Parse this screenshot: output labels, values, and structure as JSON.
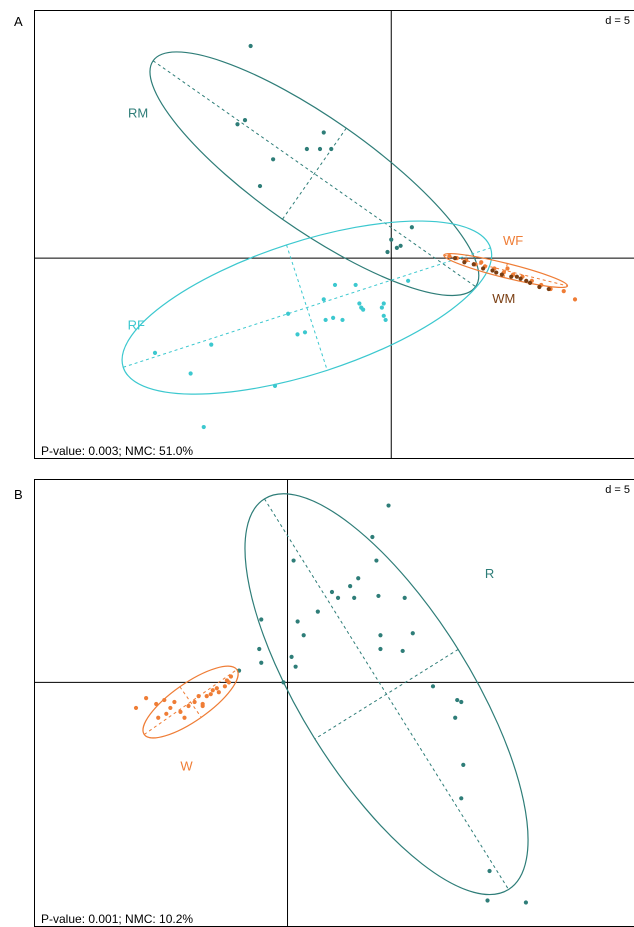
{
  "panels": [
    {
      "letter": "A",
      "scale_label": "d = 5",
      "stats": "P-value: 0.003; NMC: 51.0%"
    },
    {
      "letter": "B",
      "scale_label": "d = 5",
      "stats": "P-value: 0.001; NMC: 10.2%"
    }
  ],
  "colors": {
    "RM": "#2e7d78",
    "RF": "#3cc8cf",
    "WF": "#ef7d36",
    "WM": "#7a3e12",
    "R": "#2e7d78",
    "W": "#ef7d36"
  },
  "chart_data": [
    {
      "type": "scatter",
      "title": "",
      "xlim": [
        -19,
        13
      ],
      "ylim": [
        -9.8,
        12
      ],
      "grid": false,
      "series": [
        {
          "name": "RM",
          "color": "#2e7d78",
          "points": [
            [
              -7.5,
              10.3
            ],
            [
              -7.8,
              6.7
            ],
            [
              -8.2,
              6.5
            ],
            [
              -6.3,
              4.8
            ],
            [
              -7.0,
              3.5
            ],
            [
              -3.6,
              6.1
            ],
            [
              -4.5,
              5.3
            ],
            [
              -3.8,
              5.3
            ],
            [
              -3.2,
              5.3
            ],
            [
              1.1,
              1.5
            ],
            [
              0.0,
              0.9
            ],
            [
              0.5,
              0.6
            ],
            [
              0.3,
              0.5
            ],
            [
              -0.2,
              0.3
            ]
          ],
          "ellipse": {
            "cx": -4.1,
            "cy": 4.1,
            "rx": 10.5,
            "ry": 2.7,
            "angle_deg": -35
          }
        },
        {
          "name": "RF",
          "color": "#3cc8cf",
          "points": [
            [
              -12.6,
              -4.6
            ],
            [
              -10.7,
              -5.6
            ],
            [
              -9.6,
              -4.2
            ],
            [
              -6.2,
              -6.2
            ],
            [
              -10.0,
              -8.2
            ],
            [
              -5.5,
              -2.7
            ],
            [
              -5.0,
              -3.7
            ],
            [
              -3.0,
              -1.3
            ],
            [
              -3.6,
              -2.0
            ],
            [
              -1.9,
              -1.3
            ],
            [
              -1.7,
              -2.2
            ],
            [
              -1.6,
              -2.4
            ],
            [
              -0.4,
              -2.8
            ],
            [
              -0.3,
              -3.0
            ],
            [
              -0.5,
              -2.4
            ],
            [
              -0.4,
              -2.2
            ],
            [
              0.9,
              -1.1
            ],
            [
              -3.5,
              -3.0
            ],
            [
              -2.6,
              -3.0
            ],
            [
              -1.5,
              -2.5
            ],
            [
              -4.6,
              -3.6
            ],
            [
              -3.1,
              -2.9
            ]
          ],
          "ellipse": {
            "cx": -4.5,
            "cy": -2.4,
            "rx": 10.3,
            "ry": 3.2,
            "angle_deg": 18
          }
        },
        {
          "name": "WF",
          "color": "#ef7d36",
          "points": [
            [
              3.1,
              0.1
            ],
            [
              3.5,
              0.0
            ],
            [
              4.0,
              -0.1
            ],
            [
              4.5,
              -0.3
            ],
            [
              5.0,
              -0.4
            ],
            [
              5.5,
              -0.5
            ],
            [
              6.0,
              -0.7
            ],
            [
              6.5,
              -0.8
            ],
            [
              7.0,
              -0.9
            ],
            [
              7.5,
              -1.1
            ],
            [
              8.0,
              -1.3
            ],
            [
              8.5,
              -1.5
            ],
            [
              9.2,
              -1.6
            ],
            [
              9.8,
              -2.0
            ],
            [
              4.8,
              -0.2
            ],
            [
              6.2,
              -0.5
            ]
          ],
          "ellipse": {
            "cx": 6.1,
            "cy": -0.6,
            "rx": 3.4,
            "ry": 0.35,
            "angle_deg": -14
          }
        },
        {
          "name": "WM",
          "color": "#7a3e12",
          "points": [
            [
              3.4,
              0.0
            ],
            [
              3.9,
              -0.2
            ],
            [
              4.4,
              -0.3
            ],
            [
              4.9,
              -0.5
            ],
            [
              5.4,
              -0.6
            ],
            [
              5.9,
              -0.8
            ],
            [
              6.4,
              -0.9
            ],
            [
              6.9,
              -1.0
            ],
            [
              7.4,
              -1.2
            ],
            [
              7.9,
              -1.4
            ],
            [
              8.4,
              -1.5
            ],
            [
              5.6,
              -0.7
            ],
            [
              6.7,
              -0.9
            ],
            [
              7.2,
              -1.1
            ]
          ],
          "ellipse": null
        }
      ],
      "group_labels": [
        {
          "text": "RM",
          "x": -13.5,
          "y": 7.0,
          "series": "RM"
        },
        {
          "text": "RF",
          "x": -13.6,
          "y": -3.3,
          "series": "RF"
        },
        {
          "text": "WF",
          "x": 6.5,
          "y": 0.8,
          "series": "WF"
        },
        {
          "text": "WM",
          "x": 6.0,
          "y": -2.0,
          "series": "WM"
        }
      ]
    },
    {
      "type": "scatter",
      "title": "",
      "xlim": [
        -12.5,
        17.2
      ],
      "ylim": [
        -12.5,
        10.3
      ],
      "grid": false,
      "series": [
        {
          "name": "R",
          "color": "#2e7d78",
          "points": [
            [
              5.0,
              9.0
            ],
            [
              4.2,
              7.4
            ],
            [
              4.4,
              6.2
            ],
            [
              0.3,
              6.2
            ],
            [
              2.2,
              4.6
            ],
            [
              3.1,
              4.9
            ],
            [
              3.5,
              5.3
            ],
            [
              2.5,
              4.3
            ],
            [
              3.3,
              4.3
            ],
            [
              4.5,
              4.4
            ],
            [
              5.8,
              4.3
            ],
            [
              1.5,
              3.6
            ],
            [
              0.5,
              3.1
            ],
            [
              -1.3,
              3.2
            ],
            [
              4.6,
              2.4
            ],
            [
              6.2,
              2.5
            ],
            [
              -1.4,
              1.7
            ],
            [
              0.8,
              2.4
            ],
            [
              4.6,
              1.7
            ],
            [
              5.7,
              1.6
            ],
            [
              -2.4,
              0.6
            ],
            [
              0.2,
              1.3
            ],
            [
              -1.3,
              1.0
            ],
            [
              0.4,
              0.8
            ],
            [
              -0.2,
              0.0
            ],
            [
              7.2,
              -0.2
            ],
            [
              8.4,
              -0.9
            ],
            [
              8.3,
              -1.8
            ],
            [
              8.6,
              -1.0
            ],
            [
              8.7,
              -4.2
            ],
            [
              8.6,
              -5.9
            ],
            [
              10.0,
              -9.6
            ],
            [
              9.9,
              -11.1
            ],
            [
              11.8,
              -11.2
            ]
          ],
          "ellipse": {
            "cx": 4.9,
            "cy": -0.6,
            "rx": 11.4,
            "ry": 4.3,
            "angle_deg": -58
          }
        },
        {
          "name": "W",
          "color": "#ef7d36",
          "points": [
            [
              -7.0,
              -0.8
            ],
            [
              -7.5,
              -1.3
            ],
            [
              -6.5,
              -1.1
            ],
            [
              -6.1,
              -0.9
            ],
            [
              -5.8,
              -1.3
            ],
            [
              -5.6,
              -1.0
            ],
            [
              -4.9,
              -1.2
            ],
            [
              -4.6,
              -1.0
            ],
            [
              -4.2,
              -1.1
            ],
            [
              -4.0,
              -0.7
            ],
            [
              -3.8,
              -0.6
            ],
            [
              -3.5,
              -0.3
            ],
            [
              -3.1,
              -0.2
            ],
            [
              -2.9,
              0.0
            ],
            [
              -2.8,
              0.3
            ],
            [
              -3.0,
              0.1
            ],
            [
              -3.7,
              -0.4
            ],
            [
              -4.4,
              -0.7
            ],
            [
              -5.3,
              -1.5
            ],
            [
              -6.0,
              -1.6
            ],
            [
              -6.4,
              -1.8
            ],
            [
              -5.1,
              -1.8
            ],
            [
              -4.2,
              -1.2
            ],
            [
              -3.4,
              -0.5
            ]
          ],
          "ellipse": {
            "cx": -4.8,
            "cy": -1.0,
            "rx": 2.8,
            "ry": 0.95,
            "angle_deg": 35
          }
        }
      ],
      "group_labels": [
        {
          "text": "R",
          "x": 10.0,
          "y": 5.5,
          "series": "R"
        },
        {
          "text": "W",
          "x": -5.0,
          "y": -4.3,
          "series": "W"
        }
      ]
    }
  ]
}
